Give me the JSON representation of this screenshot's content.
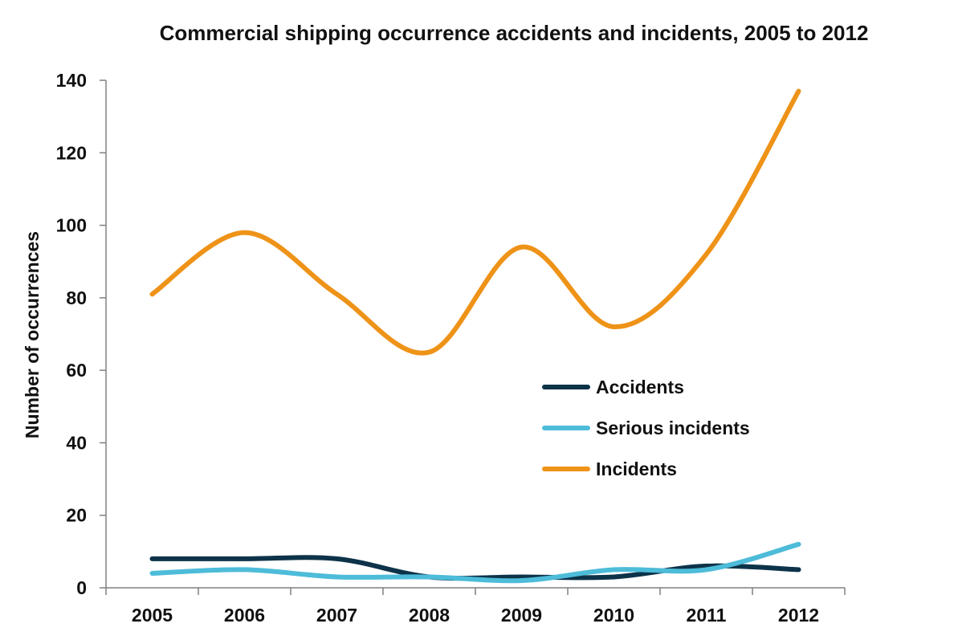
{
  "chart_data": {
    "type": "line",
    "title": "Commercial shipping occurrence accidents and incidents, 2005 to 2012",
    "xlabel": "",
    "ylabel": "Number of occurrences",
    "categories": [
      "2005",
      "2006",
      "2007",
      "2008",
      "2009",
      "2010",
      "2011",
      "2012"
    ],
    "ylim": [
      0,
      140
    ],
    "yticks": [
      0,
      20,
      40,
      60,
      80,
      100,
      120,
      140
    ],
    "grid": false,
    "legend_position": "right",
    "smooth": true,
    "series": [
      {
        "name": "Accidents",
        "color": "#0d3349",
        "values": [
          8,
          8,
          8,
          3,
          3,
          3,
          6,
          5
        ]
      },
      {
        "name": "Serious incidents",
        "color": "#4dbcd9",
        "values": [
          4,
          5,
          3,
          3,
          2,
          5,
          5,
          12
        ]
      },
      {
        "name": "Incidents",
        "color": "#ee9318",
        "values": [
          81,
          98,
          81,
          65,
          94,
          72,
          92,
          137
        ]
      }
    ]
  }
}
